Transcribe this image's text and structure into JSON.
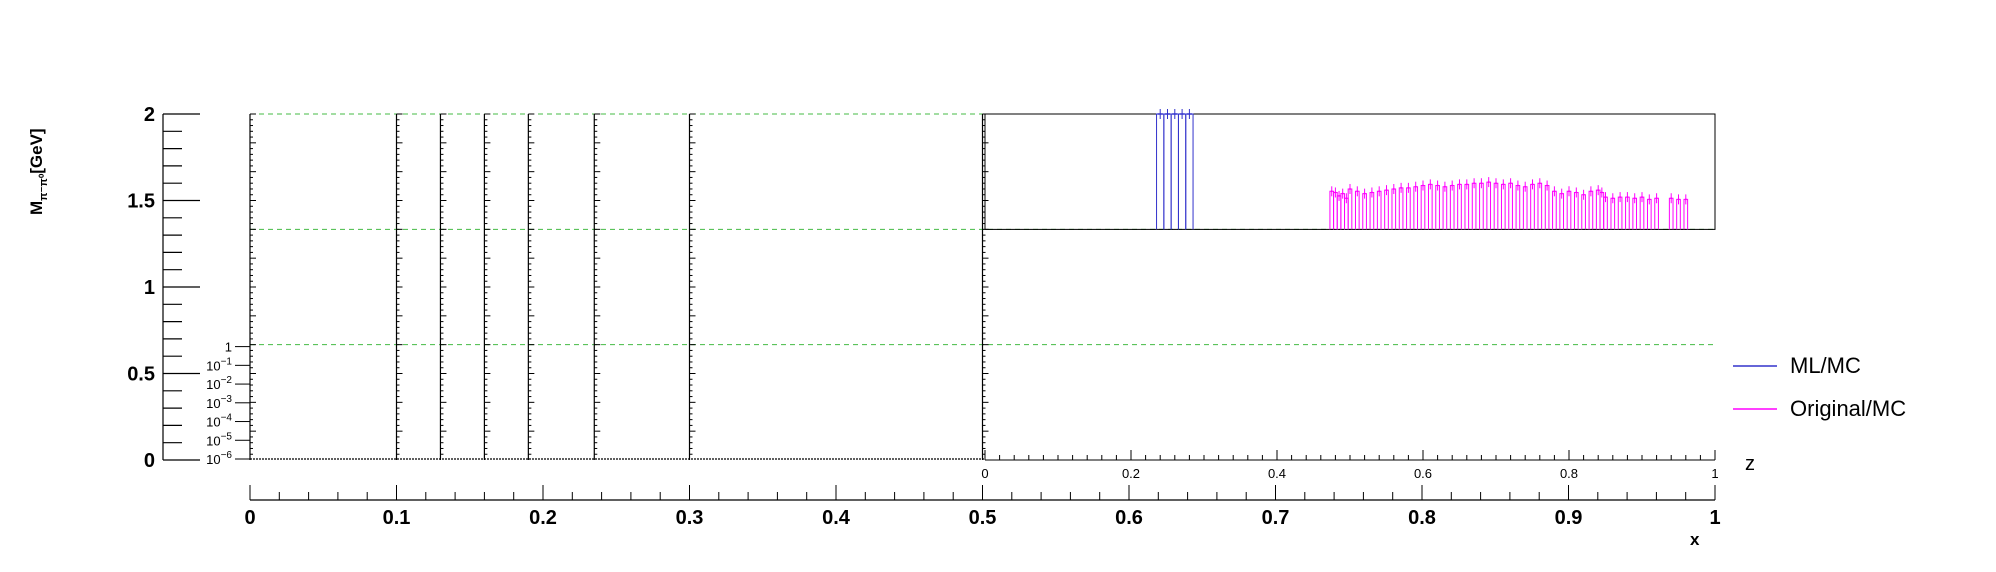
{
  "chart_data": {
    "type": "line",
    "y_axis": {
      "label_main": "M",
      "label_sub": "π⁻π⁰",
      "label_unit": "[GeV]",
      "ylim": [
        0,
        2
      ],
      "ticks": [
        "0",
        "0.5",
        "1",
        "1.5",
        "2"
      ],
      "log_ticks": [
        "1",
        "10",
        "10",
        "10",
        "10",
        "10",
        "10"
      ],
      "log_exps": [
        "",
        "−1",
        "−2",
        "−3",
        "−4",
        "−5",
        "−6"
      ]
    },
    "x_axis": {
      "label": "x",
      "xlim": [
        0,
        1
      ],
      "ticks": [
        "0",
        "0.1",
        "0.2",
        "0.3",
        "0.4",
        "0.5",
        "0.6",
        "0.7",
        "0.8",
        "0.9",
        "1"
      ]
    },
    "z_axis": {
      "label": "z",
      "zlim": [
        0,
        1
      ],
      "ticks": [
        "0",
        "0.2",
        "0.4",
        "0.6",
        "0.8",
        "1"
      ]
    },
    "x_bin_edges": [
      0,
      0.1,
      0.13,
      0.16,
      0.19,
      0.235,
      0.3,
      0.5
    ],
    "mass_boundaries": [
      0.667,
      1.333
    ],
    "legend": {
      "placement": "right",
      "entries": [
        {
          "label": "ML/MC",
          "color": "#3333cc"
        },
        {
          "label": "Original/MC",
          "color": "#ff00ff"
        }
      ]
    },
    "series": [
      {
        "name": "ML/MC",
        "color": "#3333cc",
        "z": [
          0.24,
          0.25,
          0.26,
          0.27,
          0.28
        ],
        "y": [
          1.0,
          1.0,
          1.0,
          1.0,
          1.0
        ]
      },
      {
        "name": "Original/MC",
        "color": "#ff00ff",
        "z": [
          0.475,
          0.48,
          0.485,
          0.49,
          0.495,
          0.5,
          0.51,
          0.52,
          0.53,
          0.54,
          0.55,
          0.56,
          0.57,
          0.58,
          0.59,
          0.6,
          0.61,
          0.62,
          0.63,
          0.64,
          0.65,
          0.66,
          0.67,
          0.68,
          0.69,
          0.7,
          0.71,
          0.72,
          0.73,
          0.74,
          0.75,
          0.76,
          0.77,
          0.78,
          0.79,
          0.8,
          0.81,
          0.82,
          0.83,
          0.84,
          0.845,
          0.85,
          0.86,
          0.87,
          0.88,
          0.89,
          0.9,
          0.91,
          0.92,
          0.94,
          0.95,
          0.96
        ],
        "y": [
          0.33,
          0.32,
          0.29,
          0.31,
          0.27,
          0.35,
          0.33,
          0.31,
          0.32,
          0.33,
          0.34,
          0.35,
          0.36,
          0.36,
          0.37,
          0.38,
          0.39,
          0.38,
          0.37,
          0.38,
          0.39,
          0.39,
          0.4,
          0.4,
          0.41,
          0.4,
          0.39,
          0.4,
          0.38,
          0.37,
          0.39,
          0.4,
          0.38,
          0.33,
          0.31,
          0.33,
          0.32,
          0.3,
          0.33,
          0.34,
          0.32,
          0.28,
          0.27,
          0.28,
          0.28,
          0.27,
          0.28,
          0.26,
          0.27,
          0.27,
          0.26,
          0.26
        ]
      }
    ]
  }
}
